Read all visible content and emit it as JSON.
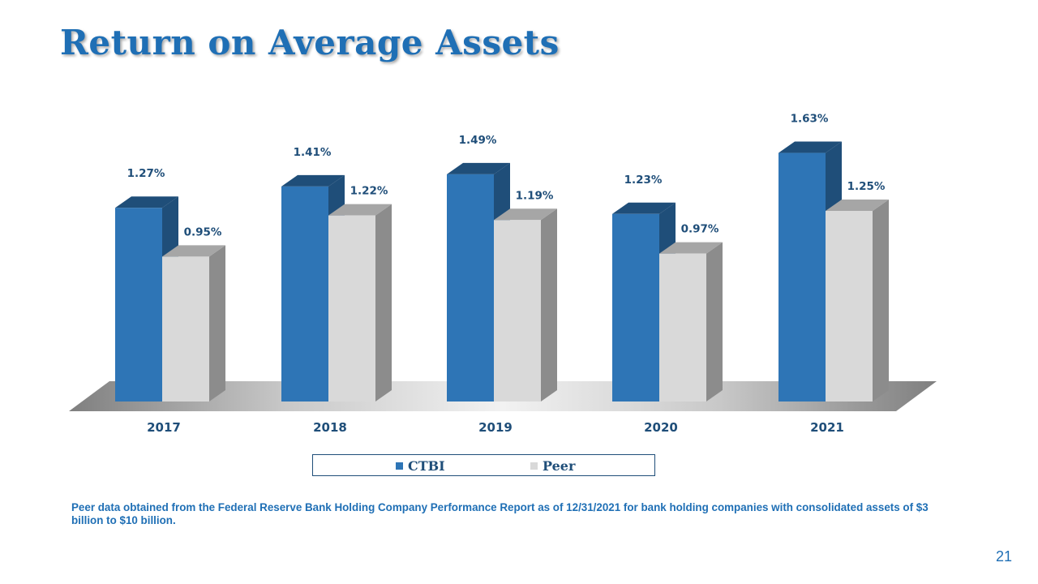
{
  "slide": {
    "title": "Return on Average Assets",
    "footnote": "Peer data obtained from the Federal Reserve Bank Holding Company Performance Report as of 12/31/2021 for bank holding companies with consolidated assets of $3 billion to $10 billion.",
    "page_number": "21"
  },
  "chart_data": {
    "type": "bar",
    "style": "3d-clustered-column",
    "categories": [
      "2017",
      "2018",
      "2019",
      "2020",
      "2021"
    ],
    "series": [
      {
        "name": "CTBI",
        "values": [
          1.27,
          1.41,
          1.49,
          1.23,
          1.63
        ],
        "labels": [
          "1.27%",
          "1.41%",
          "1.49%",
          "1.23%",
          "1.63%"
        ],
        "color": "#2e75b6",
        "side_color": "#1f4e79",
        "top_color": "#1f4e79"
      },
      {
        "name": "Peer",
        "values": [
          0.95,
          1.22,
          1.19,
          0.97,
          1.25
        ],
        "labels": [
          "0.95%",
          "1.22%",
          "1.19%",
          "0.97%",
          "1.25%"
        ],
        "color": "#d9d9d9",
        "side_color": "#8c8c8c",
        "top_color": "#a6a6a6"
      }
    ],
    "ylim": [
      0,
      1.63
    ],
    "grid": false,
    "legend": "bottom",
    "label_color": "#1f4e79"
  }
}
